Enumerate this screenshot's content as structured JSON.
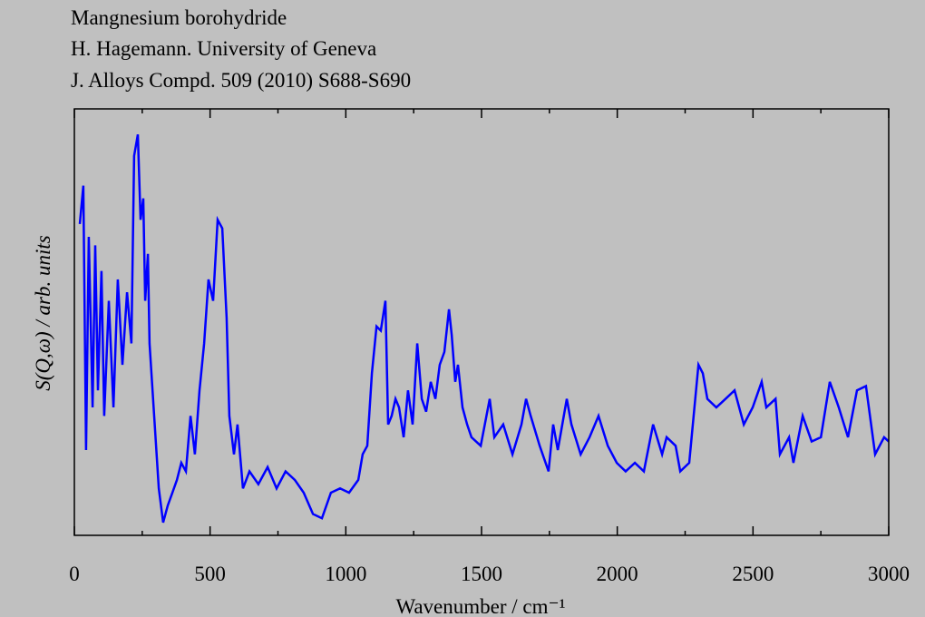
{
  "chart_data": {
    "type": "line",
    "title_lines": [
      "Mangnesium borohydride",
      "H. Hagemann. University of Geneva",
      "J. Alloys Compd. 509 (2010) S688-S690"
    ],
    "xlabel": "Wavenumber / cm⁻¹",
    "ylabel": "S(Q,ω) / arb. units",
    "xlim": [
      0,
      3000
    ],
    "ylim": [
      0,
      100
    ],
    "xticks": [
      0,
      500,
      1000,
      1500,
      2000,
      2500,
      3000
    ],
    "xminorticks": [
      250,
      750,
      1250,
      1750,
      2250,
      2750
    ],
    "series": [
      {
        "color": "#0000ff",
        "x": [
          20,
          33,
          43,
          53,
          67,
          77,
          87,
          100,
          110,
          127,
          144,
          160,
          177,
          194,
          210,
          220,
          234,
          244,
          254,
          261,
          271,
          277,
          294,
          311,
          327,
          344,
          361,
          378,
          394,
          411,
          428,
          444,
          461,
          478,
          494,
          511,
          528,
          545,
          561,
          571,
          588,
          601,
          621,
          645,
          678,
          712,
          745,
          778,
          812,
          845,
          879,
          912,
          945,
          979,
          1012,
          1046,
          1062,
          1079,
          1096,
          1113,
          1129,
          1146,
          1156,
          1169,
          1183,
          1196,
          1213,
          1229,
          1246,
          1263,
          1280,
          1296,
          1313,
          1330,
          1346,
          1363,
          1380,
          1390,
          1403,
          1413,
          1430,
          1447,
          1463,
          1497,
          1530,
          1547,
          1580,
          1614,
          1647,
          1664,
          1681,
          1714,
          1747,
          1764,
          1781,
          1814,
          1831,
          1865,
          1898,
          1931,
          1965,
          1998,
          2031,
          2065,
          2098,
          2132,
          2165,
          2182,
          2215,
          2232,
          2265,
          2299,
          2315,
          2332,
          2365,
          2399,
          2432,
          2466,
          2499,
          2532,
          2549,
          2583,
          2599,
          2633,
          2649,
          2683,
          2716,
          2750,
          2783,
          2816,
          2850,
          2883,
          2916,
          2950,
          2983,
          3000
        ],
        "values": [
          73,
          82,
          20,
          70,
          30,
          68,
          34,
          62,
          28,
          55,
          30,
          60,
          40,
          57,
          45,
          89,
          94,
          74,
          79,
          55,
          66,
          45,
          28,
          11,
          3,
          7,
          10,
          13,
          17,
          15,
          28,
          19,
          34,
          45,
          60,
          55,
          74,
          72,
          51,
          28,
          19,
          26,
          11,
          15,
          12,
          16,
          11,
          15,
          13,
          10,
          5,
          4,
          10,
          11,
          10,
          13,
          19,
          21,
          38,
          49,
          48,
          55,
          26,
          28,
          32,
          30,
          23,
          34,
          26,
          45,
          32,
          29,
          36,
          32,
          40,
          43,
          53,
          47,
          36,
          40,
          30,
          26,
          23,
          21,
          32,
          23,
          26,
          19,
          26,
          32,
          28,
          21,
          15,
          26,
          20,
          32,
          26,
          19,
          23,
          28,
          21,
          17,
          15,
          17,
          15,
          26,
          19,
          23,
          21,
          15,
          17,
          40,
          38,
          32,
          30,
          32,
          34,
          26,
          30,
          36,
          30,
          32,
          19,
          23,
          17,
          28,
          22,
          23,
          36,
          30,
          23,
          34,
          35,
          19,
          23,
          22
        ]
      }
    ]
  }
}
